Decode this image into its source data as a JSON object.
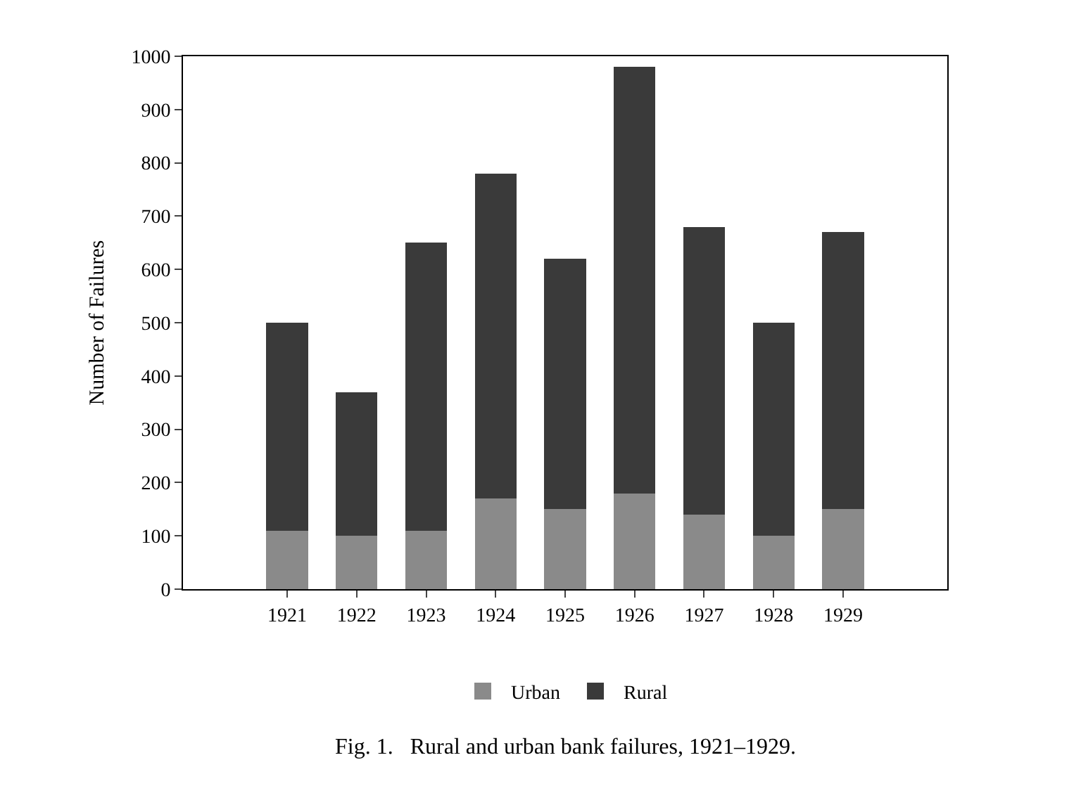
{
  "chart_data": {
    "type": "bar",
    "stacked": true,
    "ylabel": "Number of Failures",
    "categories": [
      null,
      "1921",
      "1922",
      "1923",
      "1924",
      "1925",
      "1926",
      "1927",
      "1928",
      "1929",
      null
    ],
    "series": [
      {
        "name": "Urban",
        "color": "#8a8a8a",
        "values": [
          null,
          110,
          100,
          110,
          170,
          150,
          180,
          140,
          100,
          150,
          null
        ]
      },
      {
        "name": "Rural",
        "color": "#3a3a3a",
        "values": [
          null,
          390,
          270,
          540,
          610,
          470,
          800,
          540,
          400,
          520,
          null
        ]
      }
    ],
    "ylim": [
      0,
      1000
    ],
    "yticks": [
      0,
      100,
      200,
      300,
      400,
      500,
      600,
      700,
      800,
      900,
      1000
    ],
    "legend": "bottom",
    "annotations": [
      "Fig. 1.   Rural and urban bank failures, 1921–1929."
    ]
  }
}
